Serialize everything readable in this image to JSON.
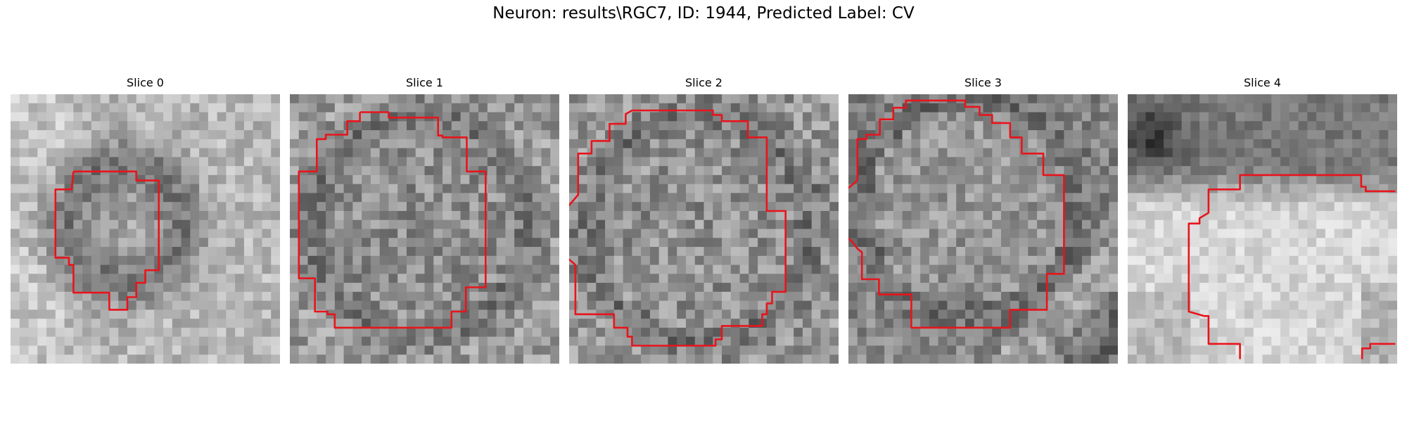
{
  "figure": {
    "title": "Neuron: results\\RGC7, ID: 1944, Predicted Label: CV"
  },
  "panels": [
    {
      "title": "Slice 0"
    },
    {
      "title": "Slice 1"
    },
    {
      "title": "Slice 2"
    },
    {
      "title": "Slice 3"
    },
    {
      "title": "Slice 4"
    }
  ],
  "style": {
    "contour_color": "#e8141c",
    "image_colormap": "grayscale"
  }
}
